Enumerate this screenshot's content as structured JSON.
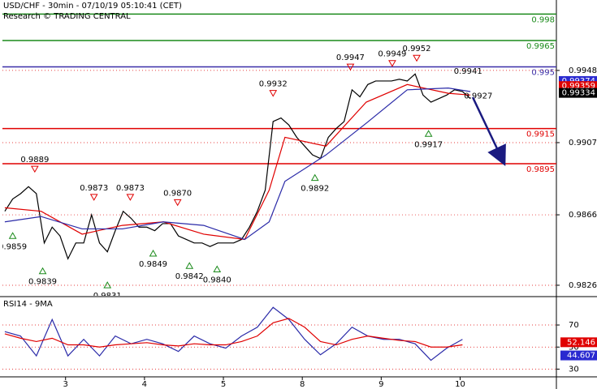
{
  "chart_data": {
    "type": "line",
    "title": "USD/CHF - 30min - 07/10/19 05:10:41 (CET)",
    "subtitle": "Research © TRADING CENTRAL",
    "xlim": [
      2.2,
      9.22
    ],
    "xticks": [
      3,
      4,
      5,
      {
        "value": 6,
        "label": "8"
      },
      {
        "value": 7,
        "label": "9"
      },
      {
        "value": 8,
        "label": "10"
      }
    ],
    "ylim": [
      0.982,
      0.9988
    ],
    "yticks": [
      0.9948,
      0.9907,
      0.9866,
      0.9826
    ],
    "grid": true,
    "x": [
      2.23,
      2.33,
      2.43,
      2.53,
      2.63,
      2.73,
      2.83,
      2.93,
      3.03,
      3.13,
      3.23,
      3.33,
      3.43,
      3.53,
      3.63,
      3.73,
      3.83,
      3.93,
      4.03,
      4.13,
      4.23,
      4.33,
      4.43,
      4.53,
      4.63,
      4.73,
      4.83,
      4.93,
      5.03,
      5.13,
      5.23,
      5.33,
      5.43,
      5.53,
      5.63,
      5.73,
      5.83,
      5.93,
      6.03,
      6.13,
      6.23,
      6.33,
      6.43,
      6.53,
      6.63,
      6.73,
      6.83,
      6.93,
      7.03,
      7.13,
      7.23,
      7.33,
      7.43,
      7.53,
      7.63,
      7.73,
      7.83,
      7.93,
      8.03,
      8.13
    ],
    "series": [
      {
        "color": "#000000",
        "values": [
          0.9868,
          0.9875,
          0.9878,
          0.9882,
          0.9878,
          0.985,
          0.9859,
          0.9854,
          0.9841,
          0.985,
          0.985,
          0.9866,
          0.985,
          0.9845,
          0.9857,
          0.9868,
          0.9864,
          0.9859,
          0.9859,
          0.9857,
          0.9861,
          0.9861,
          0.9854,
          0.9852,
          0.985,
          0.985,
          0.9848,
          0.985,
          0.985,
          0.985,
          0.9852,
          0.9859,
          0.9868,
          0.988,
          0.9919,
          0.9921,
          0.9917,
          0.991,
          0.9905,
          0.99,
          0.9898,
          0.991,
          0.9915,
          0.9919,
          0.9937,
          0.9933,
          0.994,
          0.9942,
          0.9942,
          0.9942,
          0.9943,
          0.9942,
          0.9946,
          0.9934,
          0.993,
          0.9932,
          0.9934,
          0.9937,
          0.9936,
          0.9932
        ]
      },
      {
        "color": "#e00000",
        "x": [
          2.23,
          2.69,
          3.21,
          3.72,
          4.24,
          4.75,
          5.27,
          5.58,
          5.78,
          6.3,
          6.81,
          7.33,
          7.85,
          8.13
        ],
        "values": [
          0.987,
          0.9868,
          0.9855,
          0.986,
          0.9862,
          0.9855,
          0.9852,
          0.988,
          0.991,
          0.9905,
          0.993,
          0.994,
          0.9935,
          0.9934
        ]
      },
      {
        "color": "#2a2aa8",
        "x": [
          2.23,
          2.69,
          3.21,
          3.72,
          4.24,
          4.75,
          5.27,
          5.58,
          5.78,
          6.3,
          6.81,
          7.33,
          7.85,
          8.13
        ],
        "values": [
          0.9862,
          0.9865,
          0.9858,
          0.9858,
          0.9862,
          0.986,
          0.9852,
          0.9862,
          0.9885,
          0.99,
          0.9918,
          0.9937,
          0.9938,
          0.9936
        ]
      }
    ],
    "levels": [
      {
        "value": 0.998,
        "color": "#1a8a1a"
      },
      {
        "value": 0.9965,
        "color": "#1a8a1a"
      },
      {
        "value": 0.995,
        "color": "#3b2fa8"
      },
      {
        "value": 0.9915,
        "color": "#e00000"
      },
      {
        "value": 0.9895,
        "color": "#e00000"
      }
    ],
    "price_tags": [
      {
        "value": 0.99374,
        "color": "#2a2ad0"
      },
      {
        "value": 0.99359,
        "color": "#e00000"
      },
      {
        "value": 0.99334,
        "color": "#000000"
      }
    ],
    "annotations": [
      {
        "x": 2.61,
        "value": 0.9889,
        "marker": "down"
      },
      {
        "x": 2.33,
        "value": 0.9859,
        "marker": "up"
      },
      {
        "x": 2.71,
        "value": 0.9839,
        "marker": "up"
      },
      {
        "x": 3.53,
        "value": 0.9831,
        "marker": "up"
      },
      {
        "x": 3.36,
        "value": 0.9873,
        "marker": "down"
      },
      {
        "x": 3.82,
        "value": 0.9873,
        "marker": "down"
      },
      {
        "x": 4.42,
        "value": 0.987,
        "label": "0.9870",
        "marker": "down"
      },
      {
        "x": 4.11,
        "value": 0.9849,
        "marker": "up"
      },
      {
        "x": 4.57,
        "value": 0.9842,
        "marker": "up"
      },
      {
        "x": 4.92,
        "value": 0.984,
        "label": "0.9840",
        "marker": "up"
      },
      {
        "x": 5.63,
        "value": 0.9932,
        "marker": "down"
      },
      {
        "x": 6.16,
        "value": 0.9892,
        "marker": "up"
      },
      {
        "x": 6.61,
        "value": 0.9947,
        "marker": "down"
      },
      {
        "x": 7.14,
        "value": 0.9949,
        "marker": "down"
      },
      {
        "x": 7.45,
        "value": 0.9952,
        "marker": "down"
      },
      {
        "x": 7.6,
        "value": 0.9917,
        "marker": "up"
      },
      {
        "x": 8.1,
        "value": 0.9941
      },
      {
        "x": 8.23,
        "value": 0.9927
      }
    ],
    "rsi": {
      "title": "RSI14 - 9MA",
      "ylim": [
        23,
        95
      ],
      "yticks": [
        70,
        50,
        30
      ],
      "x": [
        2.23,
        2.43,
        2.63,
        2.83,
        3.03,
        3.23,
        3.43,
        3.63,
        3.83,
        4.03,
        4.23,
        4.43,
        4.63,
        4.83,
        5.03,
        5.23,
        5.43,
        5.63,
        5.83,
        6.03,
        6.23,
        6.43,
        6.63,
        6.83,
        7.03,
        7.23,
        7.43,
        7.63,
        7.83,
        8.03
      ],
      "series": [
        {
          "color": "#2a2aa8",
          "values": [
            64,
            60,
            42,
            75,
            42,
            57,
            42,
            60,
            53,
            57,
            53,
            46,
            60,
            53,
            49,
            60,
            68,
            86,
            75,
            57,
            43,
            53,
            68,
            60,
            57,
            57,
            53,
            38,
            49,
            57
          ]
        },
        {
          "color": "#e00000",
          "values": [
            62,
            58,
            55,
            58,
            52,
            52,
            50,
            52,
            53,
            54,
            52,
            51,
            53,
            52,
            52,
            55,
            60,
            72,
            76,
            68,
            55,
            52,
            57,
            60,
            58,
            56,
            55,
            50,
            50,
            52
          ]
        }
      ],
      "tags": [
        {
          "value": 52.146,
          "color": "#e00000"
        },
        {
          "value": 44.607,
          "color": "#2a2ad0"
        }
      ]
    }
  }
}
